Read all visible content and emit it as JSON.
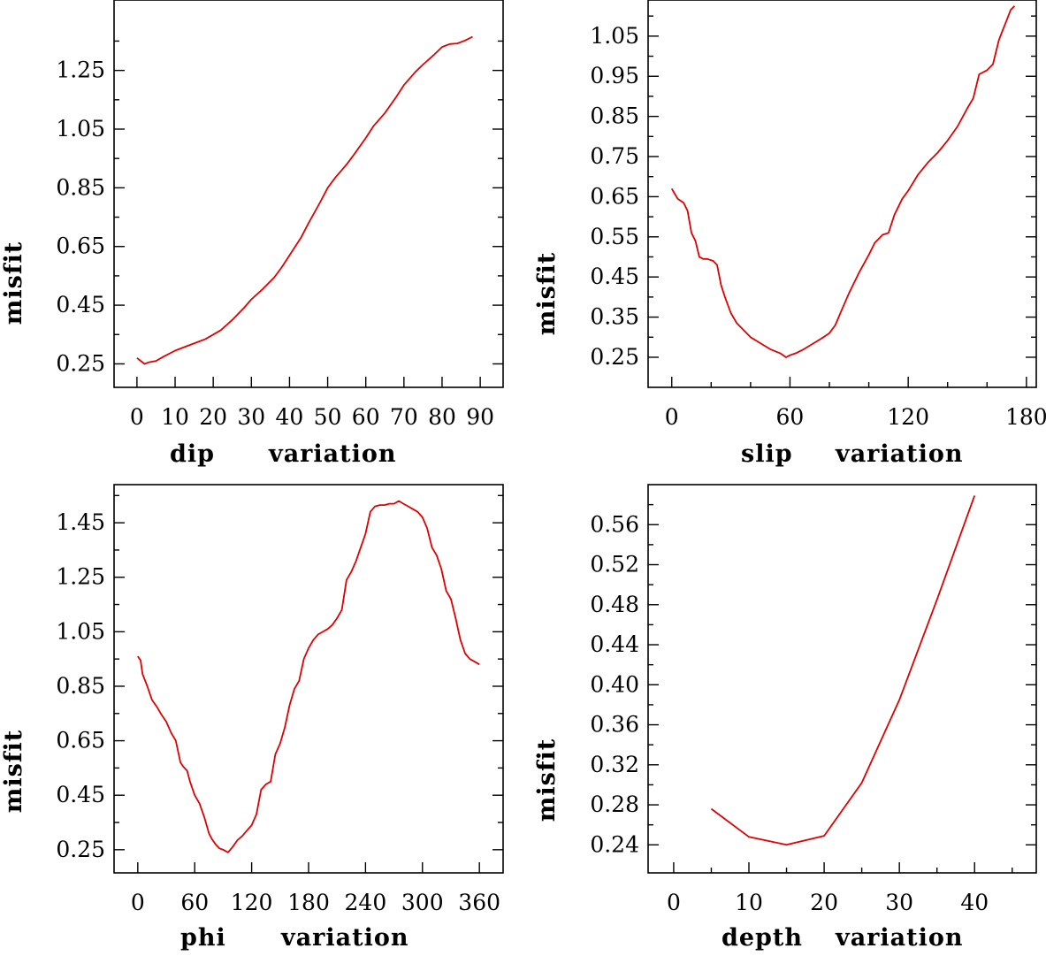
{
  "chart_data": [
    {
      "type": "line",
      "xlabel_var": "dip",
      "xlabel_word": "variation",
      "ylabel": "misfit",
      "xlim": [
        -6,
        96
      ],
      "ylim": [
        0.17,
        1.49
      ],
      "xticks": [
        0,
        10,
        20,
        30,
        40,
        50,
        60,
        70,
        80,
        90
      ],
      "xtick_labels": [
        "0",
        "10",
        "20",
        "30",
        "40",
        "50",
        "60",
        "70",
        "80",
        "90"
      ],
      "xminor": [],
      "yticks": [
        0.25,
        0.45,
        0.65,
        0.85,
        1.05,
        1.25
      ],
      "ytick_labels": [
        "0.25",
        "0.45",
        "0.65",
        "0.85",
        "1.05",
        "1.25"
      ],
      "yminor": [
        0.35,
        0.55,
        0.75,
        0.95,
        1.15,
        1.35
      ],
      "color": "#e00000",
      "x": [
        0,
        1,
        2,
        3,
        5,
        7,
        10,
        13,
        16,
        18,
        20,
        22,
        25,
        28,
        30,
        33,
        36,
        38,
        40,
        43,
        45,
        48,
        50,
        52,
        55,
        57,
        60,
        62,
        65,
        68,
        70,
        73,
        75,
        78,
        80,
        82,
        84,
        86,
        88
      ],
      "y": [
        0.27,
        0.26,
        0.25,
        0.255,
        0.26,
        0.275,
        0.295,
        0.31,
        0.325,
        0.335,
        0.35,
        0.365,
        0.4,
        0.44,
        0.47,
        0.505,
        0.545,
        0.58,
        0.62,
        0.68,
        0.73,
        0.8,
        0.85,
        0.885,
        0.93,
        0.965,
        1.02,
        1.06,
        1.105,
        1.16,
        1.2,
        1.245,
        1.27,
        1.305,
        1.33,
        1.34,
        1.342,
        1.352,
        1.365
      ]
    },
    {
      "type": "line",
      "xlabel_var": "slip",
      "xlabel_word": "variation",
      "ylabel": "misfit",
      "xlim": [
        -12,
        185
      ],
      "ylim": [
        0.175,
        1.14
      ],
      "xticks": [
        0,
        60,
        120,
        180
      ],
      "xtick_labels": [
        "0",
        "60",
        "120",
        "180"
      ],
      "xminor": [
        20,
        40,
        80,
        100,
        140,
        160
      ],
      "yticks": [
        0.25,
        0.35,
        0.45,
        0.55,
        0.65,
        0.75,
        0.85,
        0.95,
        1.05
      ],
      "ytick_labels": [
        "0.25",
        "0.35",
        "0.45",
        "0.55",
        "0.65",
        "0.75",
        "0.85",
        "0.95",
        "1.05"
      ],
      "yminor": [
        0.3,
        0.4,
        0.5,
        0.6,
        0.7,
        0.8,
        0.9,
        1.0,
        1.1
      ],
      "color": "#e00000",
      "x": [
        0,
        3,
        6,
        8,
        10,
        12,
        14,
        16,
        18,
        21,
        23,
        25,
        27,
        30,
        33,
        36,
        40,
        45,
        50,
        55,
        58,
        60,
        63,
        67,
        72,
        77,
        80,
        83,
        86,
        90,
        95,
        100,
        103,
        107,
        110,
        113,
        117,
        120,
        125,
        130,
        135,
        140,
        145,
        150,
        153,
        156,
        160,
        163,
        166,
        168,
        170,
        172,
        174
      ],
      "y": [
        0.67,
        0.645,
        0.635,
        0.615,
        0.56,
        0.54,
        0.5,
        0.495,
        0.495,
        0.49,
        0.48,
        0.43,
        0.4,
        0.36,
        0.335,
        0.32,
        0.3,
        0.285,
        0.27,
        0.26,
        0.25,
        0.255,
        0.26,
        0.27,
        0.285,
        0.3,
        0.31,
        0.33,
        0.365,
        0.41,
        0.46,
        0.505,
        0.535,
        0.555,
        0.56,
        0.605,
        0.645,
        0.665,
        0.705,
        0.735,
        0.76,
        0.79,
        0.825,
        0.87,
        0.895,
        0.955,
        0.965,
        0.98,
        1.04,
        1.065,
        1.09,
        1.115,
        1.125
      ]
    },
    {
      "type": "line",
      "xlabel_var": "phi",
      "xlabel_word": "variation",
      "ylabel": "misfit",
      "xlim": [
        -25,
        385
      ],
      "ylim": [
        0.165,
        1.59
      ],
      "xticks": [
        0,
        60,
        120,
        180,
        240,
        300,
        360
      ],
      "xtick_labels": [
        "0",
        "60",
        "120",
        "180",
        "240",
        "300",
        "360"
      ],
      "xminor": [],
      "yticks": [
        0.25,
        0.45,
        0.65,
        0.85,
        1.05,
        1.25,
        1.45
      ],
      "ytick_labels": [
        "0.25",
        "0.45",
        "0.65",
        "0.85",
        "1.05",
        "1.25",
        "1.45"
      ],
      "yminor": [
        0.35,
        0.55,
        0.75,
        0.95,
        1.15,
        1.35,
        1.55
      ],
      "color": "#e00000",
      "x": [
        0,
        3,
        5,
        10,
        15,
        20,
        25,
        30,
        35,
        40,
        45,
        48,
        52,
        55,
        60,
        65,
        70,
        75,
        78,
        82,
        86,
        90,
        95,
        100,
        105,
        110,
        115,
        120,
        125,
        130,
        135,
        140,
        145,
        150,
        155,
        160,
        165,
        170,
        175,
        180,
        185,
        190,
        195,
        200,
        205,
        210,
        215,
        220,
        225,
        230,
        235,
        240,
        245,
        250,
        255,
        260,
        265,
        270,
        275,
        280,
        285,
        290,
        295,
        300,
        305,
        310,
        315,
        320,
        325,
        330,
        335,
        340,
        345,
        350,
        355,
        360
      ],
      "y": [
        0.96,
        0.945,
        0.895,
        0.85,
        0.8,
        0.775,
        0.745,
        0.72,
        0.68,
        0.65,
        0.57,
        0.555,
        0.54,
        0.5,
        0.45,
        0.42,
        0.37,
        0.31,
        0.29,
        0.27,
        0.255,
        0.25,
        0.24,
        0.26,
        0.285,
        0.3,
        0.32,
        0.34,
        0.38,
        0.47,
        0.49,
        0.5,
        0.6,
        0.64,
        0.7,
        0.78,
        0.84,
        0.87,
        0.95,
        0.99,
        1.02,
        1.04,
        1.05,
        1.06,
        1.075,
        1.1,
        1.13,
        1.24,
        1.27,
        1.31,
        1.36,
        1.41,
        1.49,
        1.51,
        1.515,
        1.515,
        1.52,
        1.52,
        1.53,
        1.52,
        1.51,
        1.5,
        1.49,
        1.47,
        1.43,
        1.36,
        1.33,
        1.28,
        1.2,
        1.17,
        1.1,
        1.02,
        0.97,
        0.95,
        0.94,
        0.93
      ]
    },
    {
      "type": "line",
      "xlabel_var": "depth",
      "xlabel_word": "variation",
      "ylabel": "misfit",
      "xlim": [
        -3.4,
        48.2
      ],
      "ylim": [
        0.212,
        0.6
      ],
      "xticks": [
        0,
        10,
        20,
        30,
        40
      ],
      "xtick_labels": [
        "0",
        "10",
        "20",
        "30",
        "40"
      ],
      "xminor": [
        5,
        15,
        25,
        35,
        45
      ],
      "yticks": [
        0.24,
        0.28,
        0.32,
        0.36,
        0.4,
        0.44,
        0.48,
        0.52,
        0.56
      ],
      "ytick_labels": [
        "0.24",
        "0.28",
        "0.32",
        "0.36",
        "0.40",
        "0.44",
        "0.48",
        "0.52",
        "0.56"
      ],
      "yminor": [
        0.26,
        0.3,
        0.34,
        0.38,
        0.42,
        0.46,
        0.5,
        0.54,
        0.58
      ],
      "color": "#e00000",
      "x": [
        5,
        10,
        15,
        20,
        25,
        30,
        35,
        40
      ],
      "y": [
        0.276,
        0.248,
        0.24,
        0.249,
        0.302,
        0.385,
        0.485,
        0.589
      ]
    }
  ]
}
